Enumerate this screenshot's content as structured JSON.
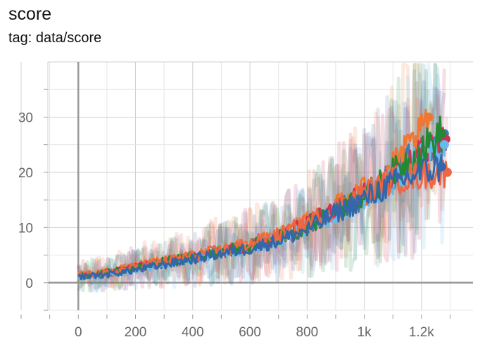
{
  "card": {
    "title": "score",
    "subtitle": "tag: data/score"
  },
  "chart_data": {
    "type": "line",
    "title": "score",
    "subtitle": "tag: data/score",
    "xlabel": "",
    "ylabel": "",
    "xlim": [
      -200,
      1380
    ],
    "ylim": [
      -5,
      40
    ],
    "grid": true,
    "legend": "none",
    "x_ticks": [
      {
        "value": 0,
        "label": "0"
      },
      {
        "value": 200,
        "label": "200"
      },
      {
        "value": 400,
        "label": "400"
      },
      {
        "value": 600,
        "label": "600"
      },
      {
        "value": 800,
        "label": "800"
      },
      {
        "value": 1000,
        "label": "1k"
      },
      {
        "value": 1200,
        "label": "1.2k"
      }
    ],
    "y_ticks": [
      {
        "value": 0,
        "label": "0"
      },
      {
        "value": 10,
        "label": "10"
      },
      {
        "value": 20,
        "label": "20"
      },
      {
        "value": 30,
        "label": "30"
      }
    ],
    "series": [
      {
        "color": "#4477aa",
        "end_value": 27,
        "x": [
          0,
          100,
          200,
          300,
          400,
          500,
          600,
          700,
          800,
          900,
          1000,
          1100,
          1200,
          1280
        ],
        "y": [
          1.0,
          1.5,
          2.5,
          3.5,
          4.5,
          5.5,
          6.5,
          8.0,
          10.0,
          13.0,
          15.5,
          19.5,
          24.5,
          27.0
        ]
      },
      {
        "color": "#ee7733",
        "end_value": 30,
        "x": [
          0,
          100,
          200,
          300,
          400,
          500,
          600,
          700,
          800,
          900,
          1000,
          1100,
          1200,
          1225
        ],
        "y": [
          1.5,
          2.0,
          3.0,
          4.0,
          4.8,
          5.8,
          7.0,
          8.5,
          11.0,
          14.0,
          17.0,
          21.0,
          27.0,
          30.0
        ]
      },
      {
        "color": "#cc3355",
        "end_value": 26,
        "x": [
          0,
          100,
          200,
          300,
          400,
          500,
          600,
          700,
          800,
          900,
          1000,
          1100,
          1200,
          1285
        ],
        "y": [
          1.2,
          1.6,
          2.8,
          3.6,
          4.6,
          5.5,
          6.8,
          8.0,
          10.5,
          13.5,
          16.0,
          19.0,
          23.0,
          26.0
        ]
      },
      {
        "color": "#66bbee",
        "end_value": 25,
        "x": [
          0,
          100,
          200,
          300,
          400,
          500,
          600,
          700,
          800,
          900,
          1000,
          1100,
          1200,
          1280
        ],
        "y": [
          1.0,
          1.4,
          2.4,
          3.4,
          4.4,
          5.2,
          6.4,
          7.8,
          10.0,
          12.5,
          15.0,
          18.5,
          22.5,
          25.0
        ]
      },
      {
        "color": "#228833",
        "end_value": 27,
        "x": [
          0,
          100,
          200,
          300,
          400,
          500,
          600,
          700,
          800,
          900,
          1000,
          1100,
          1200,
          1270
        ],
        "y": [
          1.3,
          1.8,
          2.6,
          3.8,
          4.7,
          5.6,
          6.6,
          8.2,
          10.2,
          13.2,
          15.8,
          19.8,
          24.0,
          27.0
        ]
      },
      {
        "color": "#ee6644",
        "end_value": 20,
        "x": [
          0,
          100,
          200,
          300,
          400,
          500,
          600,
          700,
          800,
          900,
          1000,
          1100,
          1200,
          1290
        ],
        "y": [
          1.4,
          1.7,
          2.9,
          3.9,
          4.9,
          5.9,
          7.1,
          8.6,
          10.8,
          13.6,
          16.2,
          18.5,
          19.5,
          20.0
        ]
      },
      {
        "color": "#3366aa",
        "end_value": 21,
        "x": [
          0,
          100,
          200,
          300,
          400,
          500,
          600,
          700,
          800,
          900,
          1000,
          1100,
          1200,
          1270
        ],
        "y": [
          1.1,
          1.5,
          2.3,
          3.3,
          4.3,
          5.3,
          6.2,
          7.6,
          9.6,
          12.6,
          15.2,
          18.0,
          20.0,
          21.0
        ]
      }
    ]
  }
}
